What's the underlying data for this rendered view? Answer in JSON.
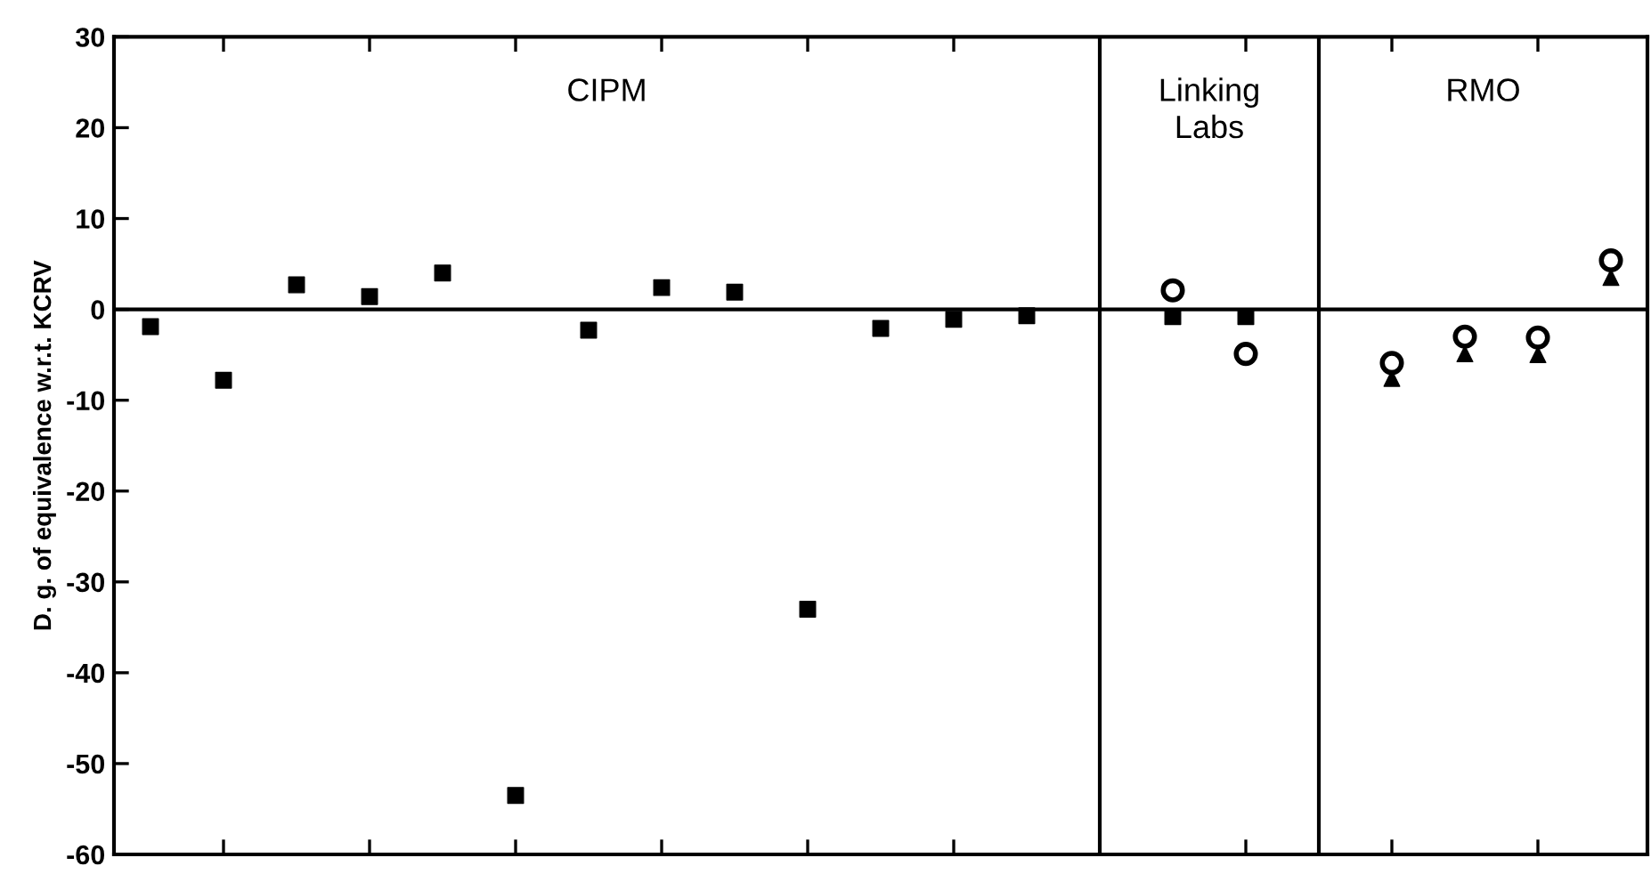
{
  "chart_data": {
    "type": "scatter",
    "ylabel": "D. g. of equivalence w.r.t. KCRV",
    "categories": [
      null,
      null,
      null,
      null,
      null,
      null,
      null,
      null,
      null,
      null,
      null,
      null,
      null,
      null,
      null,
      null,
      null,
      null,
      null,
      null,
      null
    ],
    "ylim": [
      -60,
      30
    ],
    "yticks": [
      -60,
      -50,
      -40,
      -30,
      -20,
      -10,
      0,
      10,
      20,
      30
    ],
    "tick_labels": "y",
    "grid": false,
    "legend": false,
    "series": [
      {
        "color": "#000000",
        "marker": "square",
        "values": [
          -1.9,
          -7.8,
          2.7,
          1.4,
          4.0,
          -53.5,
          -2.3,
          2.4,
          1.9,
          -33.0,
          -2.1,
          -1.1,
          -0.7,
          null,
          -0.8,
          -0.8,
          null,
          null,
          null,
          null,
          null
        ]
      },
      {
        "color": "#000000",
        "marker": "triangle",
        "values": [
          null,
          null,
          null,
          null,
          null,
          null,
          null,
          null,
          null,
          null,
          null,
          null,
          null,
          null,
          null,
          null,
          null,
          -7.6,
          -4.9,
          -5.0,
          3.5
        ]
      },
      {
        "color": "#000000",
        "marker": "circle",
        "values": [
          null,
          null,
          null,
          null,
          null,
          null,
          null,
          null,
          null,
          null,
          null,
          null,
          null,
          null,
          2.1,
          -4.9,
          null,
          -5.9,
          -3.0,
          -3.1,
          5.4
        ]
      }
    ],
    "ref_lines": [
      {
        "axis": "y",
        "value": 0,
        "color": "#000000"
      }
    ],
    "annotations": [
      "CIPM",
      "Linking\nLabs",
      "RMO"
    ]
  }
}
